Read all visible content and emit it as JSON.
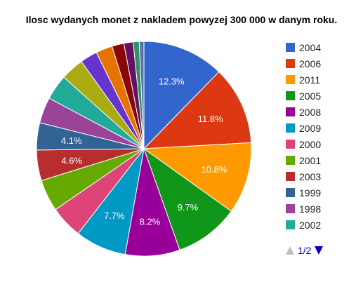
{
  "chart_data": {
    "type": "pie",
    "title": "Ilosc wydanych monet z nakladem powyzej 300 000 w danym roku.",
    "slices": [
      {
        "label": "2004",
        "value": 12.3,
        "color": "#3366cc",
        "display": "12.3%"
      },
      {
        "label": "2006",
        "value": 11.8,
        "color": "#dc3912",
        "display": "11.8%"
      },
      {
        "label": "2011",
        "value": 10.8,
        "color": "#ff9900",
        "display": "10.8%"
      },
      {
        "label": "2005",
        "value": 9.7,
        "color": "#109618",
        "display": "9.7%"
      },
      {
        "label": "2008",
        "value": 8.2,
        "color": "#990099",
        "display": "8.2%"
      },
      {
        "label": "2009",
        "value": 7.7,
        "color": "#0099c6",
        "display": "7.7%"
      },
      {
        "label": "2000",
        "value": 4.9,
        "color": "#dd4477",
        "display": ""
      },
      {
        "label": "2001",
        "value": 4.8,
        "color": "#66aa00",
        "display": ""
      },
      {
        "label": "2003",
        "value": 4.6,
        "color": "#b82e2e",
        "display": "4.6%"
      },
      {
        "label": "1999",
        "value": 4.1,
        "color": "#316395",
        "display": "4.1%"
      },
      {
        "label": "1998",
        "value": 3.9,
        "color": "#994499",
        "display": ""
      },
      {
        "label": "2002",
        "value": 3.8,
        "color": "#22aa99",
        "display": ""
      },
      {
        "label": "",
        "value": 3.5,
        "color": "#aaaa11",
        "display": ""
      },
      {
        "label": "",
        "value": 2.6,
        "color": "#6633cc",
        "display": ""
      },
      {
        "label": "",
        "value": 2.5,
        "color": "#e67300",
        "display": ""
      },
      {
        "label": "",
        "value": 1.8,
        "color": "#8b0707",
        "display": ""
      },
      {
        "label": "",
        "value": 1.4,
        "color": "#651067",
        "display": ""
      },
      {
        "label": "",
        "value": 0.9,
        "color": "#329262",
        "display": ""
      },
      {
        "label": "",
        "value": 0.7,
        "color": "#5574a6",
        "display": ""
      }
    ],
    "legend_position": "right"
  },
  "pager": {
    "text": "1/2"
  },
  "colors": {
    "pager_prev": "#c0c0c0",
    "pager_next": "#0000cc"
  }
}
